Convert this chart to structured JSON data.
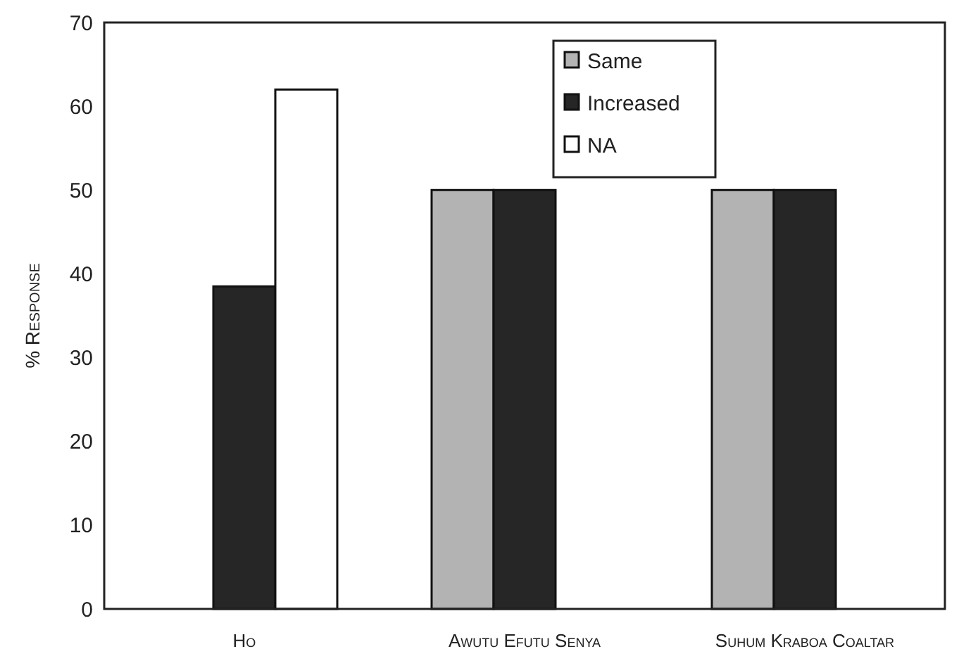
{
  "chart_data": {
    "type": "bar",
    "ylabel": "% Response",
    "categories": [
      "Ho",
      "Awutu Efutu Senya",
      "Suhum Kraboa Coaltar"
    ],
    "series": [
      {
        "name": "Same",
        "color": "#b3b3b3",
        "values": [
          null,
          50,
          50
        ]
      },
      {
        "name": "Increased",
        "color": "#262626",
        "values": [
          38.5,
          50,
          50
        ]
      },
      {
        "name": "NA",
        "color": "#ffffff",
        "values": [
          62,
          null,
          null
        ]
      }
    ],
    "ylim": [
      0,
      70
    ],
    "yticks": [
      0,
      10,
      20,
      30,
      40,
      50,
      60,
      70
    ],
    "grid": false,
    "legend": "top right"
  }
}
